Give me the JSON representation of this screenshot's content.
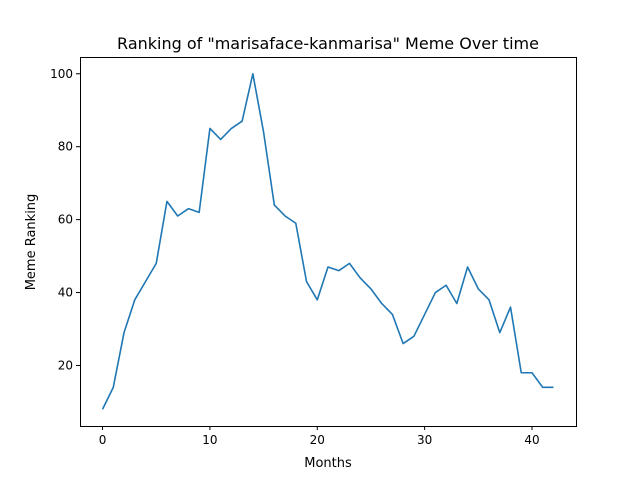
{
  "chart_data": {
    "type": "line",
    "title": "Ranking of \"marisaface-kanmarisa\" Meme Over time",
    "xlabel": "Months",
    "ylabel": "Meme Ranking",
    "xlim": [
      -2.1,
      44.1
    ],
    "ylim": [
      3.4,
      104.6
    ],
    "xticks": [
      0,
      10,
      20,
      30,
      40
    ],
    "yticks": [
      20,
      40,
      60,
      80,
      100
    ],
    "grid": false,
    "legend": "none",
    "series": [
      {
        "color": "#1f77b4",
        "x": [
          0,
          1,
          2,
          3,
          4,
          5,
          6,
          7,
          8,
          9,
          10,
          11,
          12,
          13,
          14,
          15,
          16,
          17,
          18,
          19,
          20,
          21,
          22,
          23,
          24,
          25,
          26,
          27,
          28,
          29,
          30,
          31,
          32,
          33,
          34,
          35,
          36,
          37,
          38,
          39,
          40,
          41,
          42
        ],
        "values": [
          8,
          14,
          29,
          38,
          43,
          48,
          65,
          61,
          63,
          62,
          85,
          82,
          85,
          87,
          100,
          84,
          64,
          61,
          59,
          43,
          38,
          47,
          46,
          48,
          44,
          41,
          37,
          34,
          26,
          28,
          34,
          40,
          42,
          37,
          47,
          41,
          38,
          29,
          36,
          18,
          18,
          14,
          14
        ]
      }
    ]
  }
}
